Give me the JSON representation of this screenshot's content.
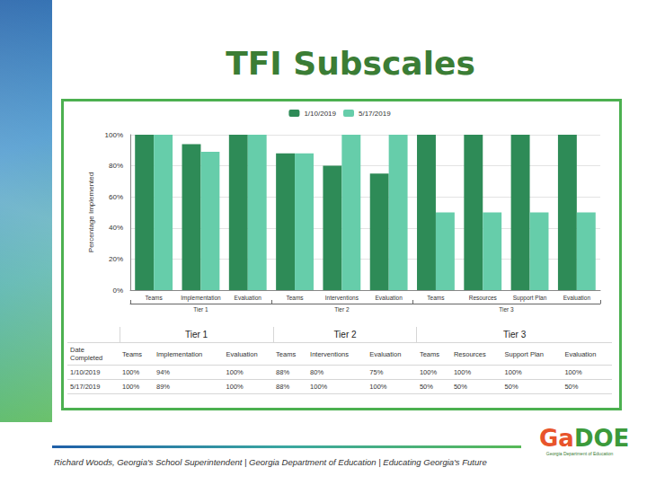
{
  "slide_title": "TFI Subscales",
  "chart_data": {
    "type": "bar",
    "categories": [
      "Teams",
      "Implementation",
      "Evaluation",
      "Teams",
      "Interventions",
      "Evaluation",
      "Teams",
      "Resources",
      "Support Plan",
      "Evaluation"
    ],
    "category_groups": [
      {
        "label": "Tier 1",
        "categories": [
          "Teams",
          "Implementation",
          "Evaluation"
        ]
      },
      {
        "label": "Tier 2",
        "categories": [
          "Teams",
          "Interventions",
          "Evaluation"
        ]
      },
      {
        "label": "Tier 3",
        "categories": [
          "Teams",
          "Resources",
          "Support Plan",
          "Evaluation"
        ]
      }
    ],
    "series": [
      {
        "name": "1/10/2019",
        "color": "#2e8b57",
        "values": [
          100,
          94,
          100,
          88,
          80,
          75,
          100,
          100,
          100,
          100
        ]
      },
      {
        "name": "5/17/2019",
        "color": "#66cdaa",
        "values": [
          100,
          89,
          100,
          88,
          100,
          100,
          50,
          50,
          50,
          50
        ]
      }
    ],
    "y_label": "Percentage Implemented",
    "ylim": [
      0,
      100
    ],
    "yticks": [
      {
        "value": 0,
        "label": "0%"
      },
      {
        "value": 20,
        "label": "20%"
      },
      {
        "value": 40,
        "label": "40%"
      },
      {
        "value": 60,
        "label": "60%"
      },
      {
        "value": 80,
        "label": "80%"
      },
      {
        "value": 100,
        "label": "100%"
      }
    ],
    "grid": true,
    "legend": "top"
  },
  "table": {
    "corner": "Date Completed",
    "groups": [
      {
        "label": "Tier 1",
        "columns": [
          "Teams",
          "Implementation",
          "Evaluation"
        ]
      },
      {
        "label": "Tier 2",
        "columns": [
          "Teams",
          "Interventions",
          "Evaluation"
        ]
      },
      {
        "label": "Tier 3",
        "columns": [
          "Teams",
          "Resources",
          "Support Plan",
          "Evaluation"
        ]
      }
    ],
    "rows": [
      {
        "date": "1/10/2019",
        "cells": [
          "100%",
          "94%",
          "100%",
          "88%",
          "80%",
          "75%",
          "100%",
          "100%",
          "100%",
          "100%"
        ]
      },
      {
        "date": "5/17/2019",
        "cells": [
          "100%",
          "89%",
          "100%",
          "88%",
          "100%",
          "100%",
          "50%",
          "50%",
          "50%",
          "50%"
        ]
      }
    ]
  },
  "footer": "Richard Woods, Georgia's School Superintendent | Georgia Department of Education | Educating Georgia's Future",
  "logo": {
    "text": "GaDOE",
    "subtitle": "Georgia Department of Education"
  }
}
